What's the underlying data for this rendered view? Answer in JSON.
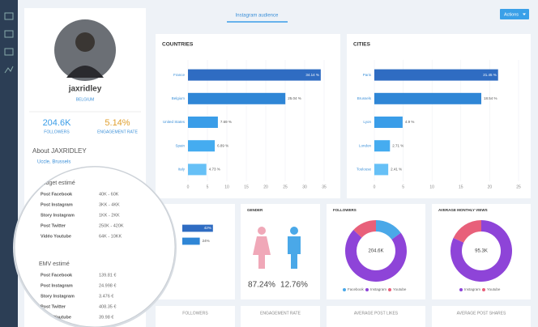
{
  "nav": {
    "tab": "Instagram audience",
    "button": "Actions"
  },
  "profile": {
    "username": "jaxridley",
    "country": "BELGIUM",
    "followers": "204.6K",
    "followers_label": "FOLLOWERS",
    "engagement": "5.14%",
    "engagement_label": "ENGAGEMENT RATE",
    "about": "About JAXRIDLEY",
    "address": "Uccle, Brussels"
  },
  "budget": {
    "title": "Budget estimé",
    "rows": [
      [
        "Post Facebook",
        "40K - 60K"
      ],
      [
        "Post Instagram",
        "3KK - 4KK"
      ],
      [
        "Story Instagram",
        "1KK - 2KK"
      ],
      [
        "Post Twitter",
        "250K - 420K"
      ],
      [
        "Vidéo Youtube",
        "64K - 10KK"
      ]
    ]
  },
  "emv": {
    "title": "EMV estimé",
    "rows": [
      [
        "Post Facebook",
        "139.81 €"
      ],
      [
        "Post Instagram",
        "24.998 €"
      ],
      [
        "Story Instagram",
        "3.476 €"
      ],
      [
        "Post Twitter",
        "408.35 €"
      ],
      [
        "Vidéo Youtube",
        "39.98 €"
      ]
    ]
  },
  "cards": [
    "FOLLOWERS",
    "ENGAGEMENT RATE",
    "AVERAGE POST LIKES",
    "AVERAGE POST SHARES"
  ],
  "chart_data": [
    {
      "type": "hbar",
      "title": "COUNTRIES",
      "categories": [
        "France",
        "Belgium",
        "United States",
        "Spain",
        "Italy"
      ],
      "values": [
        34.14,
        25.04,
        7.69,
        6.89,
        4.73
      ],
      "value_labels": [
        "34.14 %",
        "25.04 %",
        "7.69 %",
        "6.89 %",
        "4.73 %"
      ],
      "colors": [
        "#2f6cc2",
        "#2f86d6",
        "#3a9de8",
        "#45acf0",
        "#66c0f6"
      ],
      "xlim": [
        0,
        35
      ],
      "xticks": [
        0,
        5,
        10,
        15,
        20,
        25,
        30,
        35
      ]
    },
    {
      "type": "hbar",
      "title": "CITIES",
      "categories": [
        "Paris",
        "Brussels",
        "Lyon",
        "London",
        "Toulouse"
      ],
      "values": [
        21.45,
        18.54,
        4.9,
        2.71,
        2.41
      ],
      "value_labels": [
        "21.45 %",
        "18.54 %",
        "4.9 %",
        "2.71 %",
        "2.41 %"
      ],
      "colors": [
        "#2f6cc2",
        "#2f86d6",
        "#3a9de8",
        "#45acf0",
        "#66c0f6"
      ],
      "xlim": [
        0,
        25
      ],
      "xticks": [
        0,
        5,
        10,
        15,
        20,
        25
      ]
    },
    {
      "type": "hbar",
      "values": [
        42,
        24
      ],
      "value_labels": [
        "42%",
        "24%"
      ],
      "colors": [
        "#2f6cc2",
        "#2f86d6"
      ]
    },
    {
      "type": "pictogram",
      "title": "GENDER",
      "values": [
        87.24,
        12.76
      ],
      "value_labels": [
        "87.24%",
        "12.76%"
      ],
      "colors": [
        "#f0a8b8",
        "#4aa8e8"
      ]
    },
    {
      "type": "donut",
      "title": "FOLLOWERS",
      "center": "204.6K",
      "categories": [
        "Facebook",
        "Instagram",
        "Youtube"
      ],
      "values": [
        15,
        72,
        13
      ],
      "colors": [
        "#4aa8e8",
        "#8e44d8",
        "#e8607a"
      ]
    },
    {
      "type": "donut",
      "title": "AVERAGE MONTHLY VIEWS",
      "center": "95.3K",
      "categories": [
        "Instagram",
        "Youtube"
      ],
      "values": [
        82,
        18
      ],
      "colors": [
        "#8e44d8",
        "#e8607a"
      ]
    }
  ]
}
